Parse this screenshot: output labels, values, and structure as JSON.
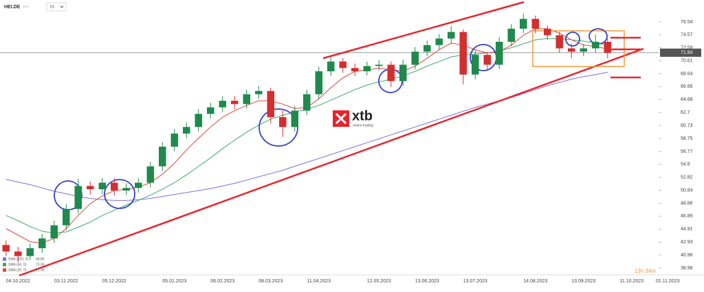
{
  "chart_data": {
    "type": "candlestick",
    "symbol": "HEI.DE",
    "symbol_note": "ETC",
    "timeframe": "D1",
    "categories": [
      null,
      "04.10.2022",
      null,
      null,
      null,
      "03.11.2022",
      null,
      null,
      null,
      "05.12.2022",
      null,
      null,
      null,
      null,
      "05.01.2023",
      null,
      null,
      null,
      "06.02.2023",
      null,
      null,
      null,
      "08.03.2023",
      null,
      null,
      null,
      "11.04.2023",
      null,
      null,
      null,
      null,
      "12.05.2023",
      null,
      null,
      null,
      "13.06.2023",
      null,
      null,
      null,
      "13.07.2023",
      null,
      null,
      null,
      null,
      "14.08.2023",
      null,
      null,
      null,
      "13.09.2023",
      null,
      null,
      null,
      "11.10.2023",
      null,
      null,
      "01.11.2023"
    ],
    "open": [
      42.5,
      41.5,
      40.8,
      42.0,
      43.5,
      45.5,
      48.0,
      51.5,
      51.0,
      52.0,
      50.8,
      51.2,
      52.0,
      54.5,
      57.5,
      59.5,
      60.5,
      62.5,
      63.5,
      64.5,
      64.0,
      65.5,
      66.0,
      62.0,
      60.5,
      63.0,
      65.5,
      69.0,
      70.5,
      69.5,
      69.0,
      69.8,
      70.0,
      67.5,
      70.0,
      72.0,
      73.0,
      74.0,
      75.0,
      68.5,
      71.5,
      70.0,
      73.5,
      75.5,
      77.0,
      75.5,
      74.5,
      72.5,
      72.0,
      72.5,
      73.5,
      null,
      null,
      null,
      null,
      null
    ],
    "high": [
      43.2,
      42.2,
      42.7,
      44.2,
      46.2,
      48.7,
      52.6,
      52.2,
      52.7,
      52.7,
      51.9,
      52.7,
      55.2,
      58.2,
      60.2,
      61.2,
      63.2,
      64.2,
      65.2,
      65.2,
      66.2,
      66.8,
      66.5,
      63.0,
      63.7,
      66.2,
      69.7,
      71.3,
      71.0,
      70.2,
      70.5,
      70.7,
      70.5,
      70.8,
      72.7,
      73.7,
      74.7,
      75.9,
      75.4,
      72.2,
      72.0,
      74.2,
      76.2,
      77.8,
      77.5,
      76.0,
      75.0,
      73.2,
      73.2,
      74.6,
      74.0,
      null,
      null,
      null,
      null,
      null
    ],
    "low": [
      40.8,
      39.9,
      40.2,
      41.3,
      42.8,
      44.8,
      47.3,
      50.2,
      50.3,
      50.0,
      50.1,
      50.5,
      51.3,
      53.8,
      56.8,
      58.8,
      59.8,
      61.8,
      62.8,
      63.2,
      63.3,
      64.8,
      61.0,
      59.0,
      59.8,
      62.3,
      64.8,
      68.3,
      68.8,
      68.3,
      68.4,
      69.1,
      66.6,
      66.8,
      69.3,
      71.3,
      72.3,
      73.3,
      67.0,
      67.8,
      69.2,
      69.3,
      72.8,
      74.8,
      74.8,
      73.8,
      71.8,
      71.0,
      71.3,
      71.8,
      71.0,
      null,
      null,
      null,
      null,
      null
    ],
    "close": [
      41.5,
      40.8,
      42.0,
      43.5,
      45.5,
      48.0,
      51.5,
      51.0,
      52.0,
      50.8,
      51.2,
      52.0,
      54.5,
      57.5,
      59.5,
      60.5,
      62.5,
      63.5,
      64.5,
      64.0,
      65.5,
      66.0,
      62.0,
      60.5,
      63.0,
      65.5,
      69.0,
      70.5,
      69.5,
      69.0,
      69.8,
      70.0,
      67.5,
      70.0,
      72.0,
      73.0,
      74.0,
      75.0,
      68.5,
      71.5,
      70.0,
      73.5,
      75.5,
      77.0,
      75.5,
      74.5,
      72.5,
      72.0,
      72.5,
      73.5,
      71.8,
      null,
      null,
      null,
      null,
      null
    ],
    "up_color": "#1f8a4c",
    "down_color": "#d32f2f",
    "series": [
      {
        "name": "SMA (200, 0)",
        "color": "#7a6fd6",
        "last": 68.85,
        "values": [
          52.5,
          52.1,
          51.7,
          51.2,
          50.7,
          50.3,
          49.9,
          49.6,
          49.4,
          49.3,
          49.3,
          49.4,
          49.6,
          49.9,
          50.2,
          50.5,
          50.8,
          51.1,
          51.5,
          51.9,
          52.4,
          52.9,
          53.4,
          53.9,
          54.5,
          55.1,
          55.7,
          56.3,
          56.9,
          57.5,
          58.1,
          58.7,
          59.3,
          59.9,
          60.5,
          61.1,
          61.7,
          62.3,
          62.9,
          63.5,
          64.0,
          64.5,
          65.0,
          65.6,
          66.2,
          66.8,
          67.3,
          67.8,
          68.2,
          68.5,
          68.85,
          null,
          null,
          null,
          null,
          null
        ]
      },
      {
        "name": "SMA (50, 0)",
        "color": "#3aa86b",
        "last": 73.05,
        "values": [
          47.0,
          46.2,
          45.3,
          44.6,
          44.3,
          44.5,
          45.2,
          46.0,
          47.0,
          47.8,
          48.6,
          49.3,
          50.1,
          51.0,
          52.0,
          53.2,
          54.5,
          55.8,
          57.2,
          58.5,
          59.7,
          60.8,
          61.7,
          62.3,
          62.8,
          63.2,
          63.8,
          64.6,
          65.4,
          66.2,
          66.9,
          67.4,
          67.8,
          68.3,
          69.0,
          69.8,
          70.5,
          71.2,
          71.5,
          71.6,
          71.8,
          72.1,
          72.6,
          73.2,
          73.8,
          74.0,
          74.0,
          73.8,
          73.6,
          73.3,
          73.05,
          null,
          null,
          null,
          null,
          null
        ]
      },
      {
        "name": "SMA (20, 0)",
        "color": "#e0453a",
        "last": 72.39,
        "values": [
          45.0,
          44.0,
          43.0,
          42.8,
          43.5,
          45.0,
          47.0,
          48.8,
          50.0,
          50.8,
          51.0,
          51.3,
          52.0,
          53.3,
          55.0,
          57.0,
          58.8,
          60.5,
          62.0,
          63.0,
          63.8,
          64.5,
          64.5,
          64.0,
          63.3,
          63.5,
          64.8,
          66.5,
          68.0,
          69.0,
          69.2,
          69.5,
          69.2,
          69.0,
          69.8,
          71.0,
          72.3,
          73.3,
          73.0,
          72.3,
          71.8,
          72.0,
          73.0,
          74.5,
          75.5,
          75.5,
          74.8,
          73.8,
          73.0,
          72.8,
          72.39,
          null,
          null,
          null,
          null,
          null
        ]
      }
    ],
    "ylim": [
      38.04,
      79.88
    ],
    "yticks": [
      76.54,
      74.57,
      72.59,
      70.61,
      68.64,
      66.66,
      64.68,
      62.7,
      60.73,
      58.75,
      56.77,
      54.8,
      52.82,
      50.84,
      48.86,
      46.89,
      44.91,
      42.93,
      40.96,
      38.98
    ],
    "last_price": 71.84,
    "watermark": {
      "brand": "xtb",
      "tagline": "online trading"
    },
    "timer": "13h 34m"
  }
}
